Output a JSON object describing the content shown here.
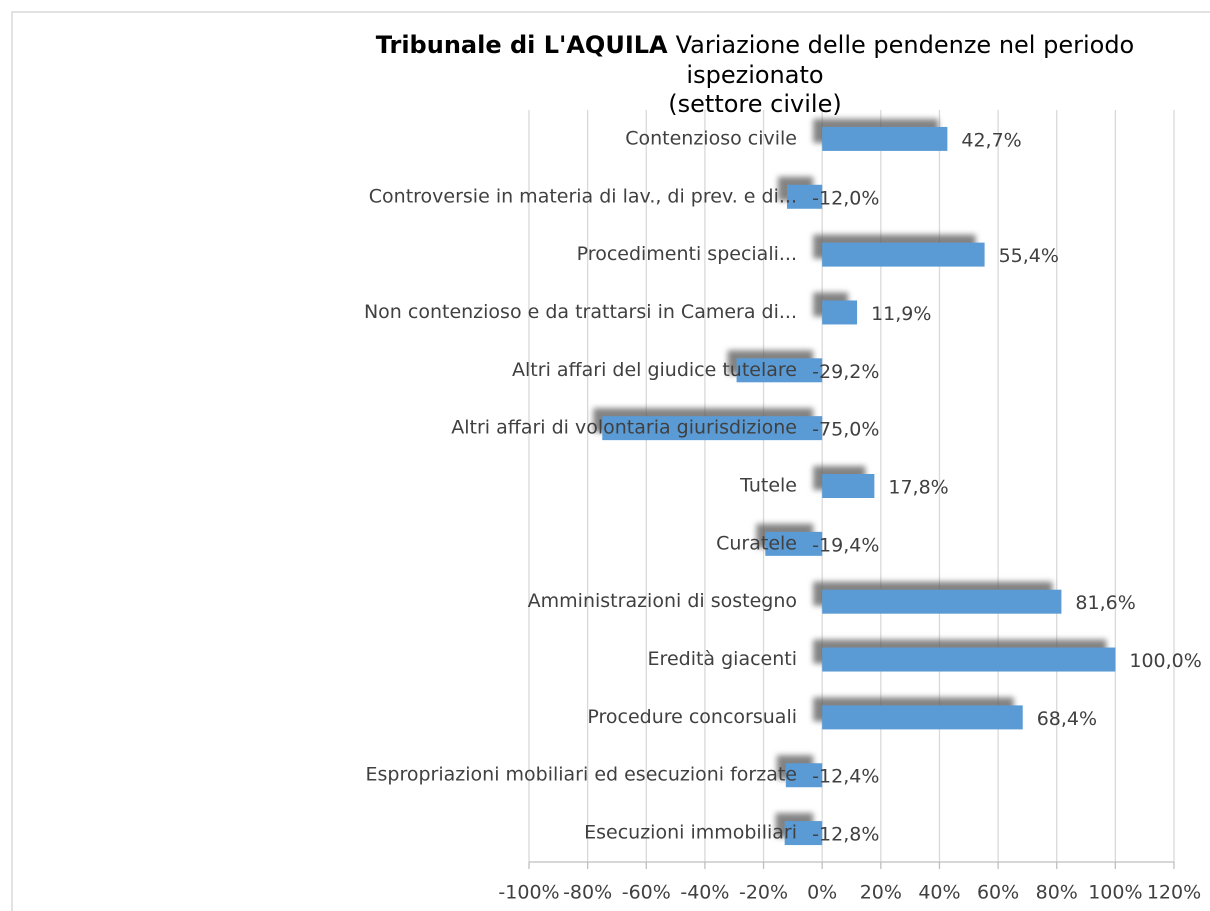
{
  "chart_data": {
    "type": "barh",
    "title": "Tribunale di L'AQUILA",
    "subtitle_lines": [
      "Variazione delle pendenze nel periodo",
      "ispezionato",
      "(settore civile)"
    ],
    "categories": [
      "Contenzioso civile",
      "Controversie in materia di lav., di prev. e di...",
      "Procedimenti speciali...",
      "Non contenzioso e da trattarsi in Camera di...",
      "Altri affari del giudice tutelare",
      "Altri affari di volontaria giurisdizione",
      "Tutele",
      "Curatele",
      "Amministrazioni di sostegno",
      "Eredità giacenti",
      "Procedure concorsuali",
      "Espropriazioni mobiliari ed esecuzioni forzate",
      "Esecuzioni immobiliari"
    ],
    "values": [
      42.7,
      -12.0,
      55.4,
      11.9,
      -29.2,
      -75.0,
      17.8,
      -19.4,
      81.6,
      100.0,
      68.4,
      -12.4,
      -12.8
    ],
    "value_labels": [
      "42,7%",
      "-12,0%",
      "55,4%",
      "11,9%",
      "-29,2%",
      "-75,0%",
      "17,8%",
      "-19,4%",
      "81,6%",
      "100,0%",
      "68,4%",
      "-12,4%",
      "-12,8%"
    ],
    "color": "#5b9bd5",
    "xlim": [
      -100,
      120
    ],
    "xticks": [
      {
        "value": -100,
        "label": "-100%"
      },
      {
        "value": -80,
        "label": "-80%"
      },
      {
        "value": -60,
        "label": "-60%"
      },
      {
        "value": -40,
        "label": "-40%"
      },
      {
        "value": -20,
        "label": "-20%"
      },
      {
        "value": 0,
        "label": "0%"
      },
      {
        "value": 20,
        "label": "20%"
      },
      {
        "value": 40,
        "label": "40%"
      },
      {
        "value": 60,
        "label": "60%"
      },
      {
        "value": 80,
        "label": "80%"
      },
      {
        "value": 100,
        "label": "100%"
      },
      {
        "value": 120,
        "label": "120%"
      }
    ],
    "grid": true
  }
}
